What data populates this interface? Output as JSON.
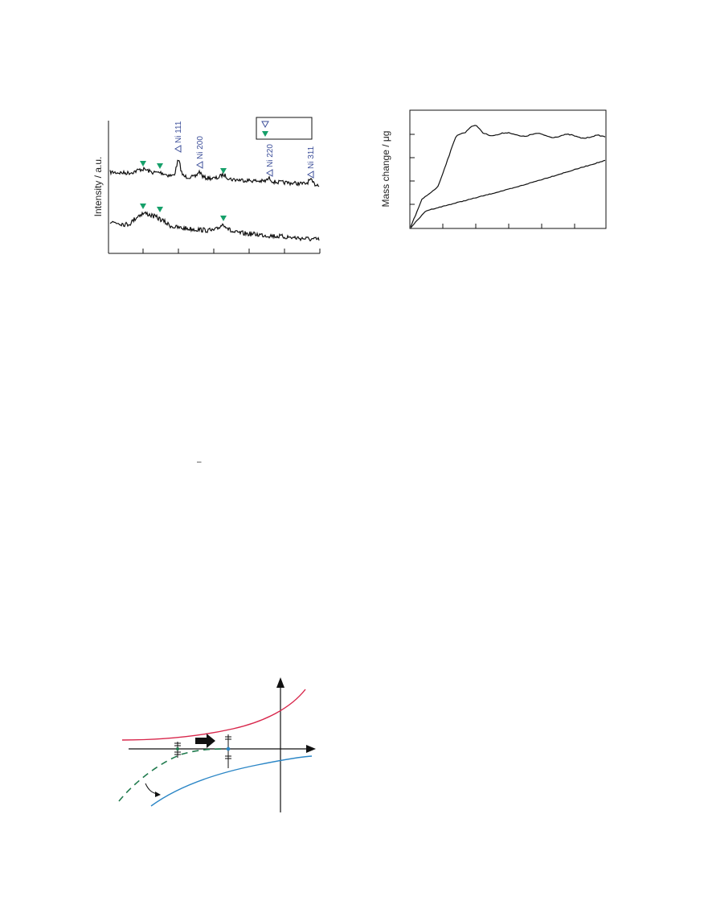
{
  "figure_a": {
    "ylabel": "Intensity / a.u.",
    "peak_labels": [
      "Ni 111",
      "Ni 200",
      "Ni 220",
      "Ni 311"
    ],
    "colors": {
      "ni_marker": "#3d4f9a",
      "green_marker": "#16a06a",
      "trace": "#111111"
    }
  },
  "figure_b": {
    "ylabel": "Mass change / μg",
    "colors": {
      "trace": "#111111"
    }
  },
  "figure_c": {
    "colors": {
      "upper_curve": "#d8264b",
      "lower_curve": "#2b86c6",
      "dashed_curve": "#1f7a4d"
    }
  },
  "stray_mark": "–"
}
